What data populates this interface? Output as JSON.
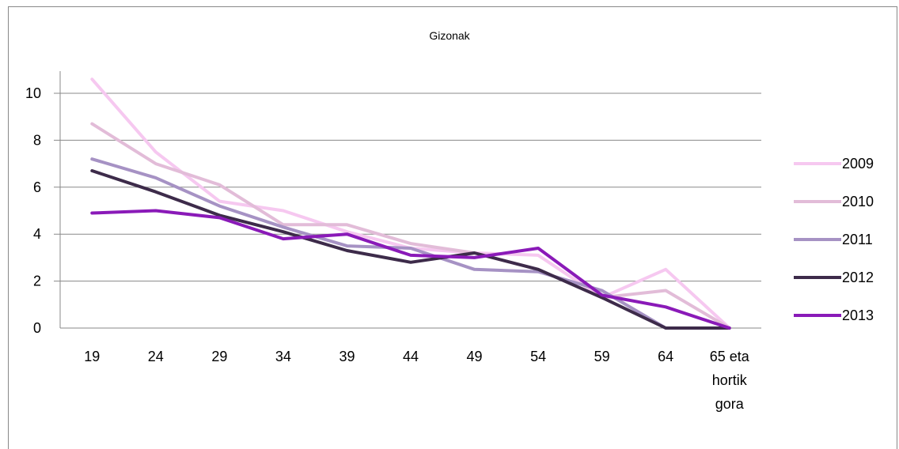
{
  "chart_data": {
    "type": "line",
    "title": "Gizonak",
    "categories": [
      "19",
      "24",
      "29",
      "34",
      "39",
      "44",
      "49",
      "54",
      "59",
      "64",
      "65 eta hortik gora"
    ],
    "ylim": [
      0,
      10
    ],
    "yticks": [
      "0",
      "2",
      "4",
      "6",
      "8",
      "10"
    ],
    "grid": true,
    "legend_position": "right",
    "series": [
      {
        "name": "2009",
        "color": "#f6c8f0",
        "values": [
          10.6,
          7.5,
          5.4,
          5.0,
          4.1,
          3.4,
          3.2,
          3.1,
          1.3,
          2.5,
          0
        ]
      },
      {
        "name": "2010",
        "color": "#e2bcd8",
        "values": [
          8.7,
          7.0,
          6.1,
          4.4,
          4.4,
          3.6,
          3.2,
          2.5,
          1.3,
          1.6,
          0
        ]
      },
      {
        "name": "2011",
        "color": "#a692c4",
        "values": [
          7.2,
          6.4,
          5.2,
          4.3,
          3.5,
          3.4,
          2.5,
          2.4,
          1.6,
          0,
          0
        ]
      },
      {
        "name": "2012",
        "color": "#3d2b4a",
        "values": [
          6.7,
          5.8,
          4.8,
          4.1,
          3.3,
          2.8,
          3.2,
          2.5,
          1.3,
          0,
          0
        ]
      },
      {
        "name": "2013",
        "color": "#8a1ab8",
        "values": [
          4.9,
          5.0,
          4.7,
          3.8,
          4.0,
          3.1,
          3.0,
          3.4,
          1.4,
          0.9,
          0
        ]
      }
    ]
  }
}
